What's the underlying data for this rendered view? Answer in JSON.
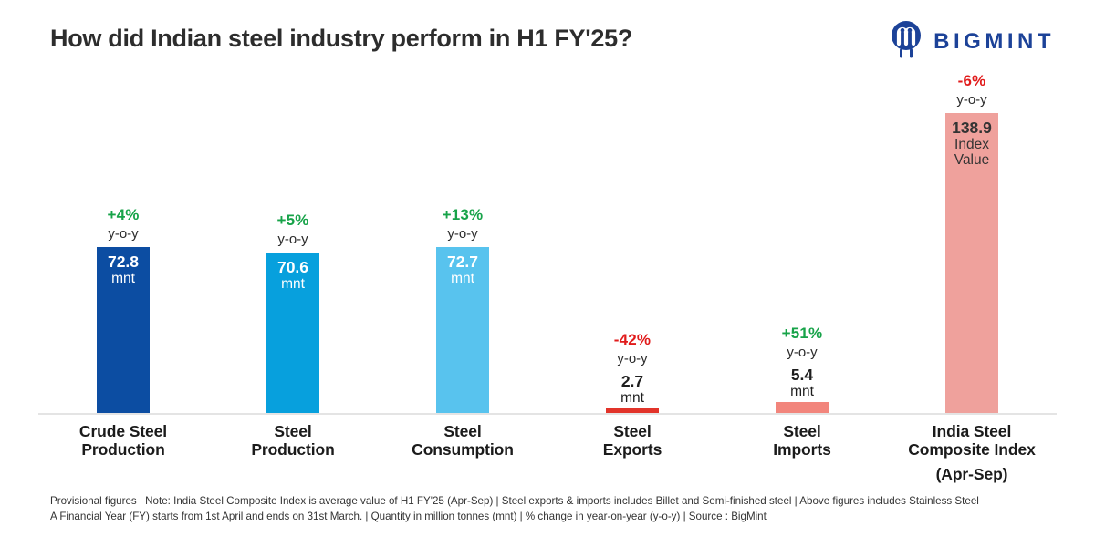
{
  "title": "How did Indian steel industry perform in H1 FY'25?",
  "brand": {
    "name": "BIGMINT",
    "color": "#1c4298"
  },
  "chart_data": {
    "type": "bar",
    "title": "How did Indian steel industry perform in H1 FY'25?",
    "categories": [
      "Crude Steel Production",
      "Steel Production",
      "Steel Consumption",
      "Steel Exports",
      "Steel Imports",
      "India Steel Composite Index (Apr-Sep)"
    ],
    "values": [
      72.8,
      70.6,
      72.7,
      2.7,
      5.4,
      138.9
    ],
    "units": [
      "mnt",
      "mnt",
      "mnt",
      "mnt",
      "mnt",
      "Index Value"
    ],
    "yoy_change": [
      "+4%",
      "+5%",
      "+13%",
      "-42%",
      "+51%",
      "-6%"
    ],
    "bar_colors": [
      "#0c4da2",
      "#07a0dd",
      "#58c3ee",
      "#e2342a",
      "#f2857c",
      "#efa19c"
    ],
    "positive_color": "#17a349",
    "negative_color": "#e11b1b",
    "legend": "none",
    "grid": "off",
    "axis": "baseline only, no ticks"
  },
  "bars": [
    {
      "change": "+4%",
      "change_color": "#17a349",
      "yoy": "y-o-y",
      "value": "72.8",
      "unit_lines": [
        "mnt"
      ],
      "unit": "mnt",
      "color": "#0c4da2",
      "value_position": "inside",
      "value_color": "#ffffff",
      "label_lines": [
        "Crude Steel",
        "Production"
      ],
      "sub_label": ""
    },
    {
      "change": "+5%",
      "change_color": "#17a349",
      "yoy": "y-o-y",
      "value": "70.6",
      "unit_lines": [
        "mnt"
      ],
      "unit": "mnt",
      "color": "#07a0dd",
      "value_position": "inside",
      "value_color": "#ffffff",
      "label_lines": [
        "Steel",
        "Production"
      ],
      "sub_label": ""
    },
    {
      "change": "+13%",
      "change_color": "#17a349",
      "yoy": "y-o-y",
      "value": "72.7",
      "unit_lines": [
        "mnt"
      ],
      "unit": "mnt",
      "color": "#58c3ee",
      "value_position": "inside",
      "value_color": "#ffffff",
      "label_lines": [
        "Steel",
        "Consumption"
      ],
      "sub_label": ""
    },
    {
      "change": "-42%",
      "change_color": "#e11b1b",
      "yoy": "y-o-y",
      "value": "2.7",
      "unit_lines": [
        "mnt"
      ],
      "unit": "mnt",
      "color": "#e2342a",
      "value_position": "above",
      "value_color": "#1e1e1e",
      "label_lines": [
        "Steel",
        "Exports"
      ],
      "sub_label": ""
    },
    {
      "change": "+51%",
      "change_color": "#17a349",
      "yoy": "y-o-y",
      "value": "5.4",
      "unit_lines": [
        "mnt"
      ],
      "unit": "mnt",
      "color": "#f2857c",
      "value_position": "above",
      "value_color": "#1e1e1e",
      "label_lines": [
        "Steel",
        "Imports"
      ],
      "sub_label": ""
    },
    {
      "change": "-6%",
      "change_color": "#e11b1b",
      "yoy": "y-o-y",
      "value": "138.9",
      "unit_lines": [
        "Index",
        "Value"
      ],
      "unit": "Index Value",
      "color": "#efa19c",
      "value_position": "inside",
      "value_color": "#333333",
      "label_lines": [
        "India Steel",
        "Composite Index"
      ],
      "sub_label": "(Apr-Sep)"
    }
  ],
  "footnotes": {
    "line1": "Provisional figures | Note: India Steel Composite Index is average value of H1 FY'25 (Apr-Sep) | Steel exports & imports includes Billet and Semi-finished steel | Above figures includes Stainless Steel",
    "line2": "A Financial Year (FY) starts from 1st April and ends on 31st March. | Quantity in million tonnes (mnt) | % change in year-on-year (y-o-y) | Source : BigMint"
  }
}
